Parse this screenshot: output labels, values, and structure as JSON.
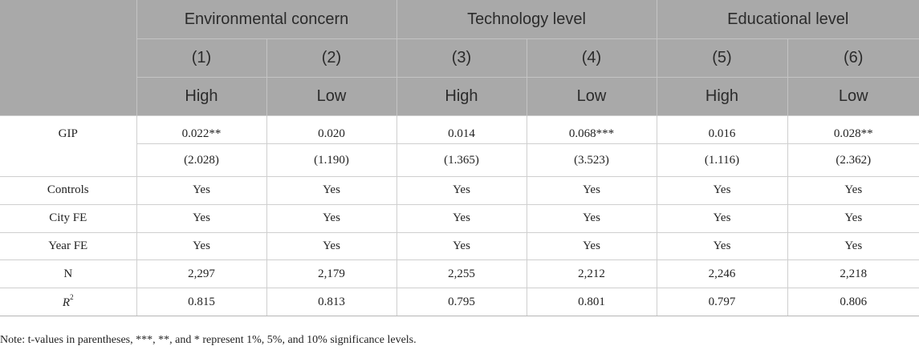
{
  "table": {
    "group_headers": [
      "Environmental concern",
      "Technology level",
      "Educational level"
    ],
    "column_numbers": [
      "(1)",
      "(2)",
      "(3)",
      "(4)",
      "(5)",
      "(6)"
    ],
    "column_levels": [
      "High",
      "Low",
      "High",
      "Low",
      "High",
      "Low"
    ],
    "gip": {
      "label": "GIP",
      "estimates": [
        "0.022**",
        "0.020",
        "0.014",
        "0.068***",
        "0.016",
        "0.028**"
      ],
      "t_values": [
        "(2.028)",
        "(1.190)",
        "(1.365)",
        "(3.523)",
        "(1.116)",
        "(2.362)"
      ]
    },
    "rows": [
      {
        "label": "Controls",
        "values": [
          "Yes",
          "Yes",
          "Yes",
          "Yes",
          "Yes",
          "Yes"
        ]
      },
      {
        "label": "City FE",
        "values": [
          "Yes",
          "Yes",
          "Yes",
          "Yes",
          "Yes",
          "Yes"
        ]
      },
      {
        "label": "Year FE",
        "values": [
          "Yes",
          "Yes",
          "Yes",
          "Yes",
          "Yes",
          "Yes"
        ]
      },
      {
        "label": "N",
        "values": [
          "2,297",
          "2,179",
          "2,255",
          "2,212",
          "2,246",
          "2,218"
        ]
      }
    ],
    "r2": {
      "label_base": "R",
      "label_sup": "2",
      "values": [
        "0.815",
        "0.813",
        "0.795",
        "0.801",
        "0.797",
        "0.806"
      ]
    }
  },
  "note": "Note: t-values in parentheses, ***, **, and * represent 1%, 5%, and 10% significance levels."
}
